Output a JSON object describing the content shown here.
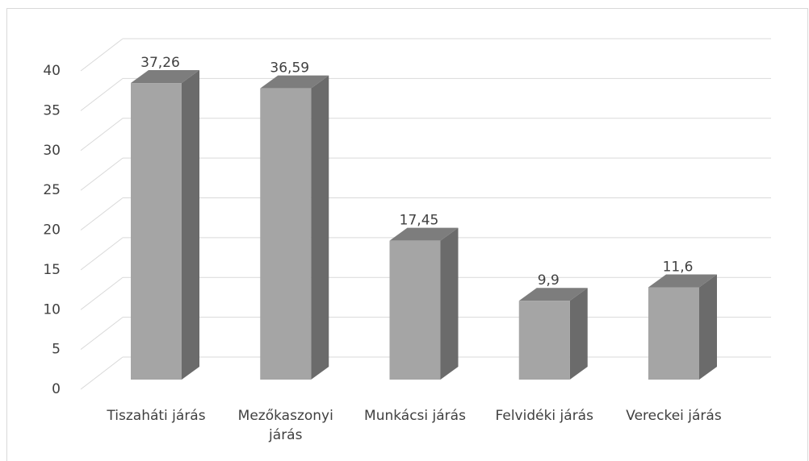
{
  "chart_data": {
    "type": "bar3d",
    "categories": [
      "Tiszaháti járás",
      "Mezőkaszonyi járás",
      "Munkácsi járás",
      "Felvidéki járás",
      "Vereckei járás"
    ],
    "values": [
      37.26,
      36.59,
      17.45,
      9.9,
      11.6
    ],
    "value_labels": [
      "37,26",
      "36,59",
      "17,45",
      "9,9",
      "11,6"
    ],
    "color": "#a5a5a5",
    "ylim": [
      0,
      40
    ],
    "yticks": [
      0,
      5,
      10,
      15,
      20,
      25,
      30,
      35,
      40
    ],
    "grid": true
  }
}
